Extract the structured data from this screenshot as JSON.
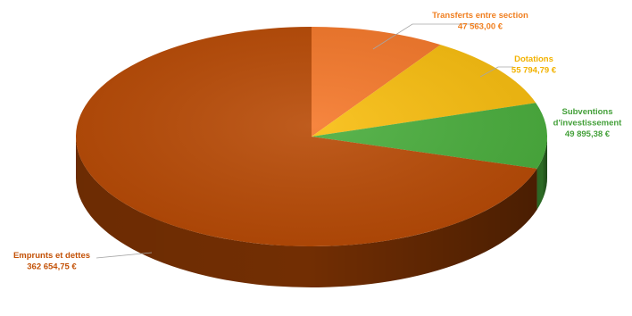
{
  "chart_data": {
    "type": "pie",
    "style": "3d",
    "categories": [
      "Transferts entre section",
      "Dotations",
      "Subventions d'investissement",
      "Emprunts et dettes"
    ],
    "values": [
      47563.0,
      55794.79,
      49895.38,
      362654.75
    ],
    "value_labels": [
      "47 563,00 €",
      "55 794,79 €",
      "49 895,38 €",
      "362 654,75 €"
    ],
    "label_lines": [
      [
        "Transferts entre section"
      ],
      [
        "Dotations"
      ],
      [
        "Subventions",
        "d'investissement"
      ],
      [
        "Emprunts et dettes"
      ]
    ],
    "colors": [
      "#f5782a",
      "#f8bd0e",
      "#49ad3c",
      "#b84a05"
    ],
    "label_colors": [
      "#f07f20",
      "#f2b200",
      "#44a03a",
      "#c35106"
    ],
    "legend": "none"
  }
}
